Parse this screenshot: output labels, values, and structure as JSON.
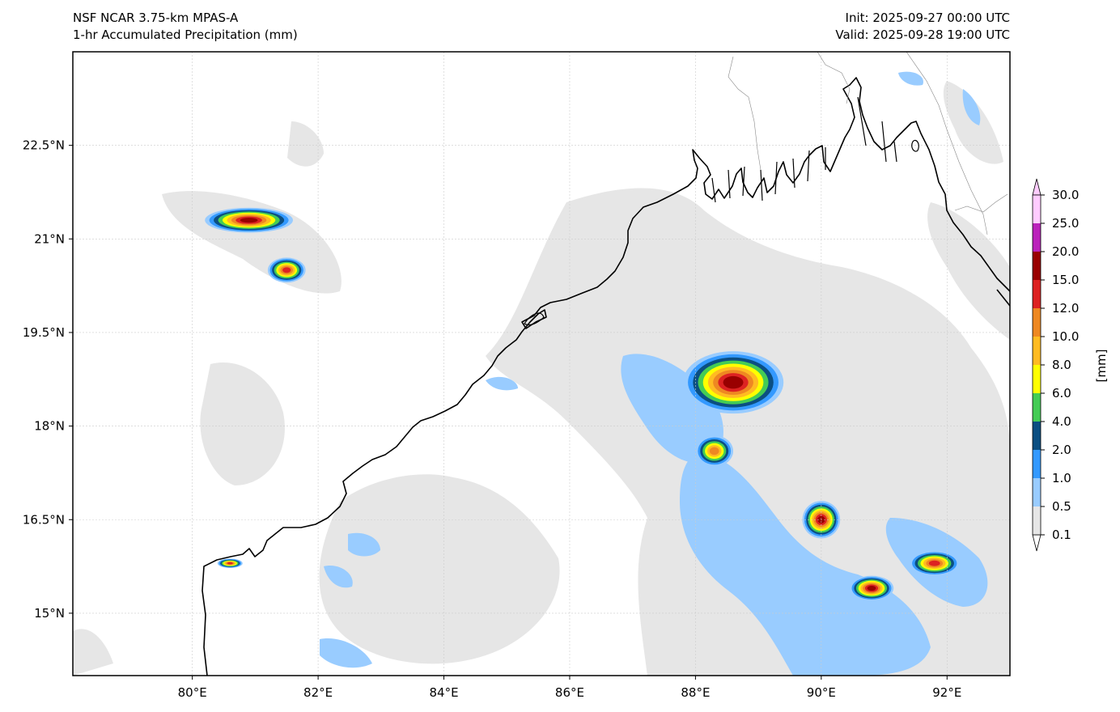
{
  "header": {
    "model_line": "NSF NCAR 3.75-km MPAS-A",
    "field_line": "1-hr Accumulated Precipitation (mm)",
    "init_line": "Init: 2025-09-27 00:00 UTC",
    "valid_line": "Valid: 2025-09-28 19:00 UTC"
  },
  "map": {
    "lon_range": [
      78.1,
      93.0
    ],
    "lat_range": [
      14.0,
      24.0
    ],
    "lon_ticks": [
      {
        "value": 80,
        "label": "80°E"
      },
      {
        "value": 82,
        "label": "82°E"
      },
      {
        "value": 84,
        "label": "84°E"
      },
      {
        "value": 86,
        "label": "86°E"
      },
      {
        "value": 88,
        "label": "88°E"
      },
      {
        "value": 90,
        "label": "90°E"
      },
      {
        "value": 92,
        "label": "92°E"
      }
    ],
    "lat_ticks": [
      {
        "value": 15.0,
        "label": "15°N"
      },
      {
        "value": 16.5,
        "label": "16.5°N"
      },
      {
        "value": 18.0,
        "label": "18°N"
      },
      {
        "value": 19.5,
        "label": "19.5°N"
      },
      {
        "value": 21.0,
        "label": "21°N"
      },
      {
        "value": 22.5,
        "label": "22.5°N"
      }
    ],
    "gridlines": true,
    "colors": {
      "coast": "#000000",
      "border": "#888888",
      "grid": "#cccccc"
    }
  },
  "colorbar": {
    "unit_label": "[mm]",
    "levels": [
      "0.1",
      "0.5",
      "1.0",
      "2.0",
      "4.0",
      "6.0",
      "8.0",
      "10.0",
      "12.0",
      "15.0",
      "20.0",
      "25.0",
      "30.0"
    ],
    "colors": [
      "#e6e6e6",
      "#99ccff",
      "#3399ff",
      "#0b4f82",
      "#44cc55",
      "#ffff00",
      "#ffbb22",
      "#ee8822",
      "#dd2222",
      "#990000",
      "#bb22bb",
      "#ffccff"
    ],
    "extend_low_color": "#ffffff",
    "extend_high_color": "#ffccff"
  },
  "precip_regions": [
    {
      "lon": 80.9,
      "lat": 21.3,
      "rx": 1.4,
      "ry": 0.4,
      "max_level": 10
    },
    {
      "lon": 81.5,
      "lat": 20.5,
      "rx": 0.6,
      "ry": 0.4,
      "max_level": 9
    },
    {
      "lon": 88.6,
      "lat": 18.7,
      "rx": 1.6,
      "ry": 1.0,
      "max_level": 10
    },
    {
      "lon": 88.3,
      "lat": 17.6,
      "rx": 0.6,
      "ry": 0.5,
      "max_level": 8
    },
    {
      "lon": 90.0,
      "lat": 16.5,
      "rx": 0.6,
      "ry": 0.6,
      "max_level": 10
    },
    {
      "lon": 90.8,
      "lat": 15.4,
      "rx": 0.7,
      "ry": 0.4,
      "max_level": 10
    },
    {
      "lon": 91.8,
      "lat": 15.8,
      "rx": 0.8,
      "ry": 0.4,
      "max_level": 9
    },
    {
      "lon": 80.6,
      "lat": 15.8,
      "rx": 0.4,
      "ry": 0.15,
      "max_level": 9
    }
  ]
}
